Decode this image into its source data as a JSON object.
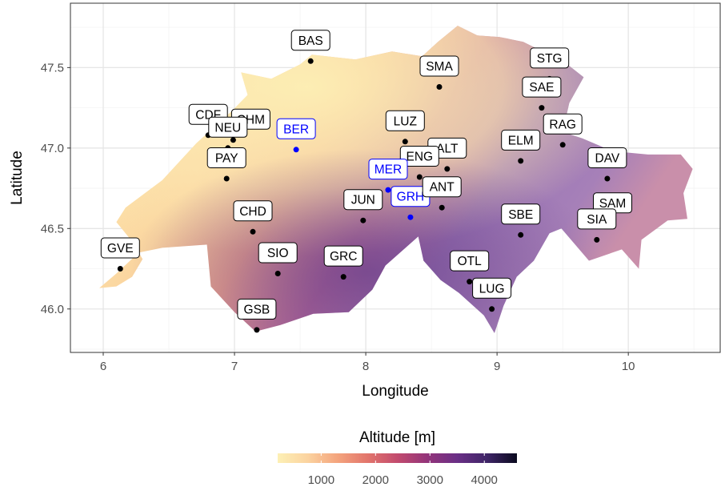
{
  "chart_data": {
    "type": "scatter",
    "subtype": "map",
    "xlabel": "Longitude",
    "ylabel": "Latitude",
    "xlim": [
      5.75,
      10.7
    ],
    "ylim": [
      45.73,
      47.9
    ],
    "x_ticks": [
      6,
      7,
      8,
      9,
      10
    ],
    "y_ticks": [
      46.0,
      46.5,
      47.0,
      47.5
    ],
    "grid": true,
    "legend": {
      "title": "Altitude [m]",
      "position": "bottom",
      "range": [
        200,
        4600
      ],
      "ticks": [
        "1000",
        "2000",
        "3000",
        "4000"
      ],
      "colors": [
        "#fdf0b5",
        "#fbd3a0",
        "#f4a47d",
        "#e2756c",
        "#c24b6e",
        "#93347a",
        "#6a2f86",
        "#3f2567",
        "#0a0a1e"
      ]
    },
    "colors": {
      "default_point": "#000000",
      "highlight": "#0000ff",
      "panel": "#ffffff",
      "grid": "#ebebeb"
    },
    "points": [
      {
        "code": "BAS",
        "lon": 7.58,
        "lat": 47.54,
        "color": "black"
      },
      {
        "code": "SMA",
        "lon": 8.56,
        "lat": 47.38,
        "color": "black"
      },
      {
        "code": "STG",
        "lon": 9.4,
        "lat": 47.43,
        "color": "black"
      },
      {
        "code": "SAE",
        "lon": 9.34,
        "lat": 47.25,
        "color": "black"
      },
      {
        "code": "CDF",
        "lon": 6.8,
        "lat": 47.08,
        "color": "black"
      },
      {
        "code": "CHM",
        "lon": 6.99,
        "lat": 47.05,
        "color": "black"
      },
      {
        "code": "NEU",
        "lon": 6.95,
        "lat": 47.0,
        "color": "black"
      },
      {
        "code": "BER",
        "lon": 7.47,
        "lat": 46.99,
        "color": "blue"
      },
      {
        "code": "LUZ",
        "lon": 8.3,
        "lat": 47.04,
        "color": "black"
      },
      {
        "code": "ALT",
        "lon": 8.62,
        "lat": 46.87,
        "color": "black"
      },
      {
        "code": "ELM",
        "lon": 9.18,
        "lat": 46.92,
        "color": "black"
      },
      {
        "code": "RAG",
        "lon": 9.5,
        "lat": 47.02,
        "color": "black"
      },
      {
        "code": "PAY",
        "lon": 6.94,
        "lat": 46.81,
        "color": "black"
      },
      {
        "code": "ENG",
        "lon": 8.41,
        "lat": 46.82,
        "color": "black"
      },
      {
        "code": "MER",
        "lon": 8.17,
        "lat": 46.74,
        "color": "blue"
      },
      {
        "code": "DAV",
        "lon": 9.84,
        "lat": 46.81,
        "color": "black"
      },
      {
        "code": "GRH",
        "lon": 8.34,
        "lat": 46.57,
        "color": "blue"
      },
      {
        "code": "ANT",
        "lon": 8.58,
        "lat": 46.63,
        "color": "black"
      },
      {
        "code": "JUN",
        "lon": 7.98,
        "lat": 46.55,
        "color": "black"
      },
      {
        "code": "SAM",
        "lon": 9.88,
        "lat": 46.53,
        "color": "black"
      },
      {
        "code": "CHD",
        "lon": 7.14,
        "lat": 46.48,
        "color": "black"
      },
      {
        "code": "SBE",
        "lon": 9.18,
        "lat": 46.46,
        "color": "black"
      },
      {
        "code": "SIA",
        "lon": 9.76,
        "lat": 46.43,
        "color": "black"
      },
      {
        "code": "GVE",
        "lon": 6.13,
        "lat": 46.25,
        "color": "black"
      },
      {
        "code": "SIO",
        "lon": 7.33,
        "lat": 46.22,
        "color": "black"
      },
      {
        "code": "GRC",
        "lon": 7.83,
        "lat": 46.2,
        "color": "black"
      },
      {
        "code": "OTL",
        "lon": 8.79,
        "lat": 46.17,
        "color": "black"
      },
      {
        "code": "LUG",
        "lon": 8.96,
        "lat": 46.0,
        "color": "black"
      },
      {
        "code": "GSB",
        "lon": 7.17,
        "lat": 45.87,
        "color": "black"
      }
    ]
  }
}
